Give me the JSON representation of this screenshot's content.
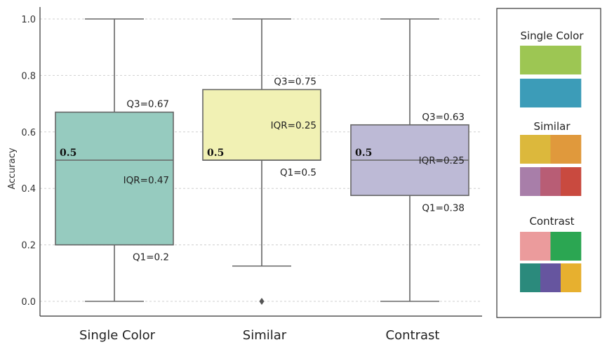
{
  "chart_data": {
    "type": "box",
    "ylabel": "Accuracy",
    "xlabel": "",
    "ylim": [
      0,
      1.0
    ],
    "yticks": [
      "0.0",
      "0.2",
      "0.4",
      "0.6",
      "0.8",
      "1.0"
    ],
    "grid": "horizontal dashed",
    "categories": [
      "Single Color",
      "Similar",
      "Contrast"
    ],
    "boxes": [
      {
        "name": "Single Color",
        "whisker_low": 0.0,
        "q1": 0.2,
        "median": 0.5,
        "q3": 0.67,
        "whisker_high": 1.0,
        "outliers": [],
        "color": "#96cbbf",
        "labels": {
          "q3": "Q3=0.67",
          "iqr": "IQR=0.47",
          "q1": "Q1=0.2",
          "median": "0.5"
        }
      },
      {
        "name": "Similar",
        "whisker_low": 0.125,
        "q1": 0.5,
        "median": 0.5,
        "q3": 0.75,
        "whisker_high": 1.0,
        "outliers": [
          0.0
        ],
        "color": "#f1f1b4",
        "labels": {
          "q3": "Q3=0.75",
          "iqr": "IQR=0.25",
          "q1": "Q1=0.5",
          "median": "0.5"
        }
      },
      {
        "name": "Contrast",
        "whisker_low": 0.0,
        "q1": 0.375,
        "median": 0.5,
        "q3": 0.625,
        "whisker_high": 1.0,
        "outliers": [],
        "color": "#bdbad6",
        "labels": {
          "q3": "Q3=0.63",
          "iqr": "IQR=0.25",
          "q1": "Q1=0.38",
          "median": "0.5"
        }
      }
    ]
  },
  "legend": {
    "groups": [
      {
        "title": "Single Color",
        "rows": [
          [
            "#9dc653"
          ],
          [
            "#3c9cb8"
          ]
        ]
      },
      {
        "title": "Similar",
        "rows": [
          [
            "#dcb83c",
            "#e0993c"
          ],
          [
            "#a87ea9",
            "#b85d75",
            "#c94a3f"
          ]
        ]
      },
      {
        "title": "Contrast",
        "rows": [
          [
            "#eb9b9c",
            "#2ba652"
          ],
          [
            "#2b8a7c",
            "#66559f",
            "#e7b02f"
          ]
        ]
      }
    ]
  }
}
